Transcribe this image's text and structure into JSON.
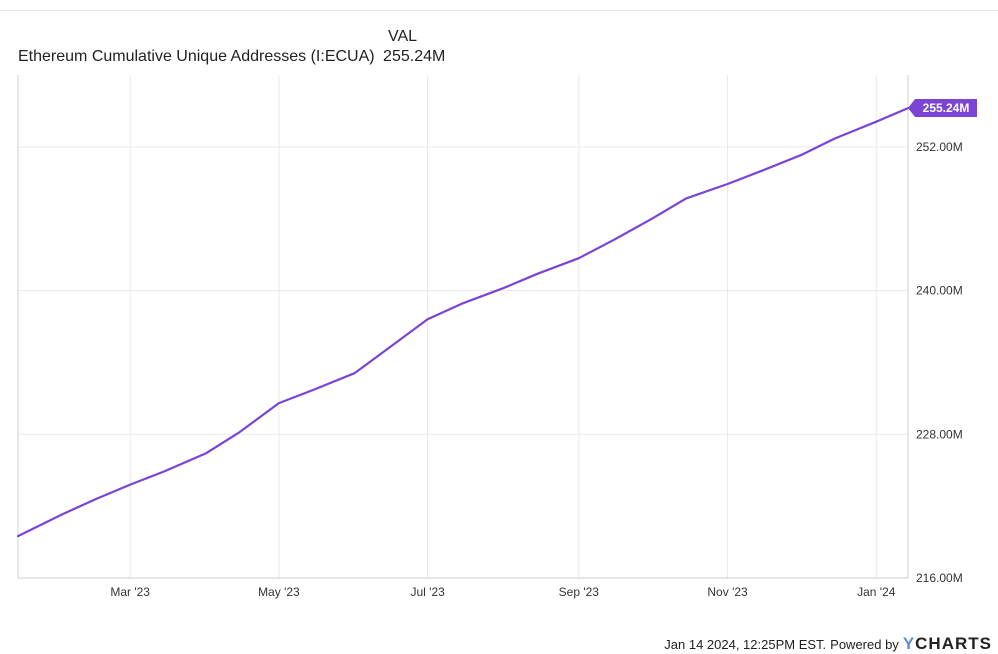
{
  "header": {
    "val_label": "VAL"
  },
  "legend": {
    "series_name": "Ethereum Cumulative Unique Addresses (I:ECUA)",
    "series_value": "255.24M"
  },
  "footer": {
    "timestamp": "Jan 14 2024, 12:25PM EST.",
    "powered_by": "Powered by",
    "brand_y": "Y",
    "brand_rest": "CHARTS"
  },
  "colors": {
    "line": "#7b44d4",
    "grid": "#e9e9e9",
    "end_badge": "#7b44d4"
  },
  "chart_data": {
    "type": "line",
    "title": "",
    "xlabel": "",
    "ylabel": "",
    "x_range": [
      "2023-01-14",
      "2024-01-14"
    ],
    "ylim": [
      216.0,
      258.0
    ],
    "x_ticks": [
      {
        "date": "2023-03-01",
        "label": "Mar '23"
      },
      {
        "date": "2023-05-01",
        "label": "May '23"
      },
      {
        "date": "2023-07-01",
        "label": "Jul '23"
      },
      {
        "date": "2023-09-01",
        "label": "Sep '23"
      },
      {
        "date": "2023-11-01",
        "label": "Nov '23"
      },
      {
        "date": "2024-01-01",
        "label": "Jan '24"
      }
    ],
    "y_ticks": [
      {
        "value": 216.0,
        "label": "216.00M"
      },
      {
        "value": 228.0,
        "label": "228.00M"
      },
      {
        "value": 240.0,
        "label": "240.00M"
      },
      {
        "value": 252.0,
        "label": "252.00M"
      }
    ],
    "grid": true,
    "end_label": "255.24M",
    "series": [
      {
        "name": "Ethereum Cumulative Unique Addresses (I:ECUA)",
        "points": [
          {
            "date": "2023-01-14",
            "value": 219.5
          },
          {
            "date": "2023-02-01",
            "value": 221.3
          },
          {
            "date": "2023-02-15",
            "value": 222.6
          },
          {
            "date": "2023-03-01",
            "value": 223.8
          },
          {
            "date": "2023-03-15",
            "value": 224.9
          },
          {
            "date": "2023-04-01",
            "value": 226.4
          },
          {
            "date": "2023-04-15",
            "value": 228.2
          },
          {
            "date": "2023-05-01",
            "value": 230.6
          },
          {
            "date": "2023-05-15",
            "value": 231.7
          },
          {
            "date": "2023-06-01",
            "value": 233.1
          },
          {
            "date": "2023-06-15",
            "value": 235.2
          },
          {
            "date": "2023-07-01",
            "value": 237.6
          },
          {
            "date": "2023-07-15",
            "value": 238.9
          },
          {
            "date": "2023-08-01",
            "value": 240.2
          },
          {
            "date": "2023-08-15",
            "value": 241.4
          },
          {
            "date": "2023-09-01",
            "value": 242.7
          },
          {
            "date": "2023-09-15",
            "value": 244.2
          },
          {
            "date": "2023-10-01",
            "value": 246.0
          },
          {
            "date": "2023-10-15",
            "value": 247.7
          },
          {
            "date": "2023-11-01",
            "value": 248.9
          },
          {
            "date": "2023-11-15",
            "value": 250.0
          },
          {
            "date": "2023-12-01",
            "value": 251.3
          },
          {
            "date": "2023-12-15",
            "value": 252.7
          },
          {
            "date": "2024-01-01",
            "value": 254.1
          },
          {
            "date": "2024-01-14",
            "value": 255.24
          }
        ]
      }
    ]
  }
}
